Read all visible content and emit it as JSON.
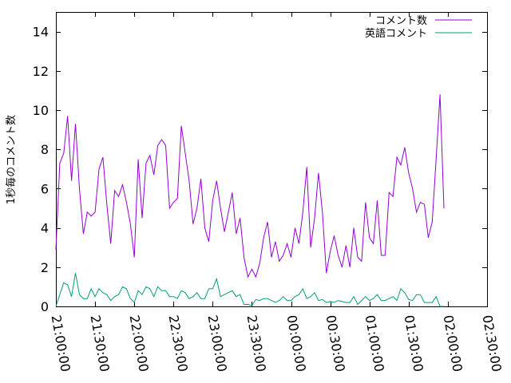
{
  "chart_data": {
    "type": "line",
    "title": "",
    "xlabel": "",
    "ylabel": "1秒毎のコメント数",
    "ylim": [
      0,
      15
    ],
    "yticks": [
      0,
      2,
      4,
      6,
      8,
      10,
      12,
      14
    ],
    "xlim": [
      "21:00:00",
      "02:30:00"
    ],
    "xticks": [
      "21:00:00",
      "21:30:00",
      "22:00:00",
      "22:30:00",
      "23:00:00",
      "23:30:00",
      "00:00:00",
      "00:30:00",
      "01:00:00",
      "01:30:00",
      "02:00:00",
      "02:30:00"
    ],
    "grid": false,
    "legend_position": "top-right",
    "x_step_minutes": 3,
    "x_start": "21:00:00",
    "series": [
      {
        "name": "コメント数",
        "color": "#9400d3",
        "values": [
          2.9,
          7.3,
          7.8,
          9.7,
          6.4,
          9.3,
          6.0,
          3.7,
          4.8,
          4.6,
          4.8,
          7.0,
          7.6,
          5.2,
          3.2,
          5.9,
          5.6,
          6.2,
          5.3,
          4.2,
          2.5,
          7.5,
          4.5,
          7.3,
          7.7,
          6.7,
          8.2,
          8.5,
          8.2,
          5.0,
          5.3,
          5.5,
          9.2,
          7.8,
          6.4,
          4.2,
          5.0,
          6.5,
          4.0,
          3.3,
          5.4,
          6.4,
          5.0,
          3.8,
          4.8,
          5.8,
          3.7,
          4.5,
          2.5,
          1.5,
          1.9,
          1.5,
          2.2,
          3.5,
          4.3,
          2.5,
          3.3,
          2.3,
          2.6,
          3.2,
          2.5,
          4.0,
          3.2,
          4.8,
          7.1,
          3.0,
          4.5,
          6.8,
          4.8,
          1.7,
          2.8,
          3.6,
          2.6,
          2.0,
          3.1,
          2.0,
          4.0,
          2.5,
          2.3,
          5.3,
          3.5,
          3.2,
          5.4,
          2.6,
          2.6,
          5.8,
          5.6,
          7.6,
          7.2,
          8.1,
          6.8,
          6.0,
          4.8,
          5.3,
          5.2,
          3.5,
          4.3,
          7.5,
          10.8,
          5.0
        ]
      },
      {
        "name": "英語コメント",
        "color": "#009e73",
        "values": [
          0.0,
          0.6,
          1.2,
          1.1,
          0.5,
          1.7,
          0.6,
          0.4,
          0.4,
          0.9,
          0.5,
          0.9,
          0.7,
          0.6,
          0.3,
          0.5,
          0.6,
          1.0,
          0.9,
          0.4,
          0.2,
          0.8,
          0.6,
          1.0,
          0.9,
          0.5,
          1.0,
          0.8,
          0.8,
          0.5,
          0.5,
          0.4,
          0.8,
          0.7,
          0.4,
          0.5,
          0.7,
          0.4,
          0.4,
          0.9,
          0.9,
          1.4,
          0.5,
          0.6,
          0.7,
          0.8,
          0.5,
          0.6,
          0.1,
          0.1,
          0.05,
          0.35,
          0.3,
          0.4,
          0.4,
          0.3,
          0.2,
          0.3,
          0.5,
          0.3,
          0.3,
          0.5,
          0.6,
          0.9,
          0.4,
          0.5,
          0.7,
          0.3,
          0.35,
          0.2,
          0.25,
          0.2,
          0.3,
          0.25,
          0.2,
          0.2,
          0.5,
          0.1,
          0.3,
          0.5,
          0.3,
          0.4,
          0.6,
          0.3,
          0.3,
          0.4,
          0.5,
          0.3,
          0.9,
          0.7,
          0.35,
          0.3,
          0.6,
          0.6,
          0.2,
          0.2,
          0.2,
          0.5,
          0.0,
          0.0
        ]
      }
    ]
  }
}
